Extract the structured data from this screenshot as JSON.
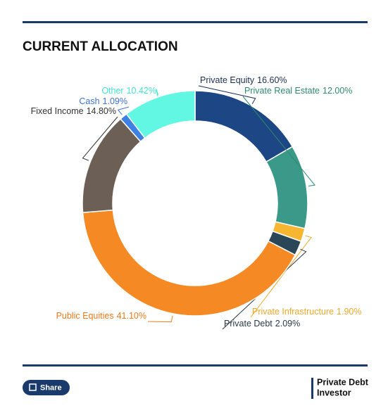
{
  "chart_data": {
    "type": "donut",
    "title": "CURRENT ALLOCATION",
    "categories": [
      "Private Equity",
      "Private Real Estate",
      "Private Infrastructure",
      "Private Debt",
      "Public Equities",
      "Fixed Income",
      "Cash",
      "Other"
    ],
    "values": [
      16.6,
      12.0,
      1.9,
      2.09,
      41.1,
      14.8,
      1.09,
      10.42
    ],
    "value_labels": [
      "16.60%",
      "12.00%",
      "1.90%",
      "2.09%",
      "41.10%",
      "14.80%",
      "1.09%",
      "10.42%"
    ],
    "colors": [
      "#1c4784",
      "#3a9988",
      "#f6b631",
      "#2b4657",
      "#f58a24",
      "#6c5f55",
      "#3f80e4",
      "#62f7e2"
    ]
  },
  "share_button": "Share",
  "logo": [
    "Private Debt",
    "Investor"
  ]
}
